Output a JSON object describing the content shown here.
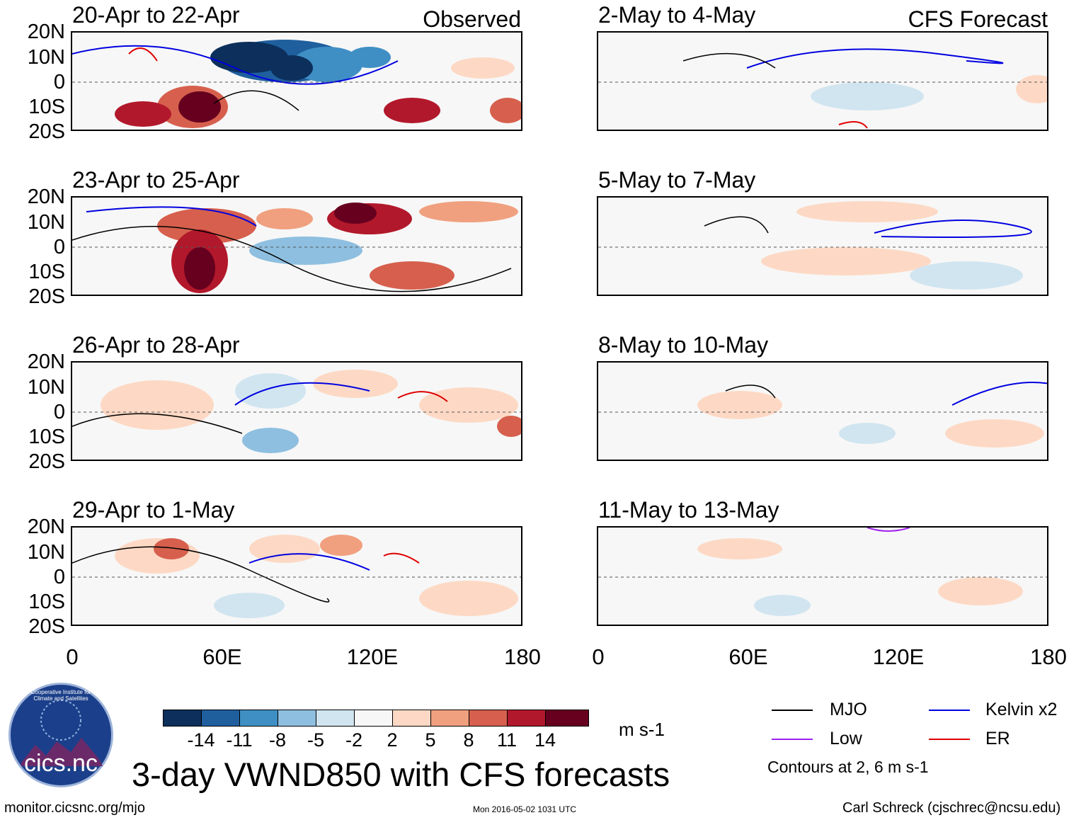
{
  "panels_observed": [
    {
      "title": "20-Apr to 22-Apr",
      "corner": "Observed"
    },
    {
      "title": "23-Apr to 25-Apr",
      "corner": ""
    },
    {
      "title": "26-Apr to 28-Apr",
      "corner": ""
    },
    {
      "title": "29-Apr to 1-May",
      "corner": ""
    }
  ],
  "panels_forecast": [
    {
      "title": "2-May to 4-May",
      "corner": "CFS Forecast"
    },
    {
      "title": "5-May to 7-May",
      "corner": ""
    },
    {
      "title": "8-May to 10-May",
      "corner": ""
    },
    {
      "title": "11-May to 13-May",
      "corner": ""
    }
  ],
  "lat_labels": [
    "20N",
    "10N",
    "0",
    "10S",
    "20S"
  ],
  "lon_labels": [
    "0",
    "60E",
    "120E",
    "180"
  ],
  "colorbar": {
    "unit": "m s-1",
    "tick_labels": [
      "-14",
      "-11",
      "-8",
      "-5",
      "-2",
      "2",
      "5",
      "8",
      "11",
      "14"
    ],
    "colors": [
      "#0c2f5c",
      "#1f5f9e",
      "#3f8fc5",
      "#8ebfe0",
      "#d1e5f0",
      "#f7f7f7",
      "#fdd9c5",
      "#f0a07f",
      "#d6604d",
      "#b2182b",
      "#67001f"
    ]
  },
  "legend": {
    "items": [
      {
        "label": "MJO",
        "color": "#000000"
      },
      {
        "label": "Kelvin x2",
        "color": "#0000e0"
      },
      {
        "label": "Low",
        "color": "#a020f0"
      },
      {
        "label": "ER",
        "color": "#e00000"
      }
    ],
    "contours_note": "Contours at 2, 6 m s-1"
  },
  "logo": {
    "text": "cics.nc",
    "ring_text": "Cooperative Institute for Climate and Satellites"
  },
  "main_title": "3-day VWND850 with CFS forecasts",
  "footer": {
    "left": "monitor.cicsnc.org/mjo",
    "center": "Mon 2016-05-02 1031 UTC",
    "right": "Carl Schreck (cjschrec@ncsu.edu)"
  }
}
